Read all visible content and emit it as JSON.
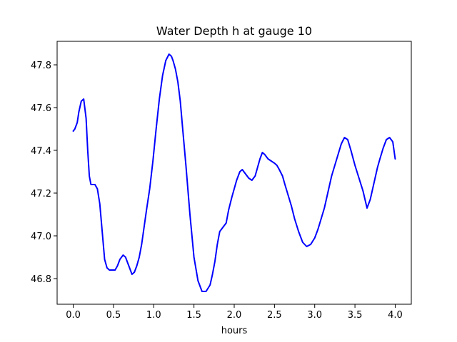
{
  "chart_data": {
    "type": "line",
    "title": "Water Depth h at gauge 10",
    "xlabel": "hours",
    "ylabel": "",
    "xlim": [
      -0.2,
      4.2
    ],
    "ylim": [
      46.68,
      47.91
    ],
    "grid": false,
    "x_ticks": [
      0.0,
      0.5,
      1.0,
      1.5,
      2.0,
      2.5,
      3.0,
      3.5,
      4.0
    ],
    "x_tick_labels": [
      "0.0",
      "0.5",
      "1.0",
      "1.5",
      "2.0",
      "2.5",
      "3.0",
      "3.5",
      "4.0"
    ],
    "y_ticks": [
      46.8,
      47.0,
      47.2,
      47.4,
      47.6,
      47.8
    ],
    "y_tick_labels": [
      "46.8",
      "47.0",
      "47.2",
      "47.4",
      "47.6",
      "47.8"
    ],
    "series": [
      {
        "color": "#0000ff",
        "x": [
          0.0,
          0.02,
          0.05,
          0.07,
          0.1,
          0.13,
          0.16,
          0.18,
          0.2,
          0.22,
          0.25,
          0.27,
          0.3,
          0.33,
          0.36,
          0.39,
          0.42,
          0.45,
          0.48,
          0.5,
          0.52,
          0.55,
          0.58,
          0.62,
          0.65,
          0.68,
          0.71,
          0.73,
          0.76,
          0.79,
          0.82,
          0.85,
          0.88,
          0.91,
          0.95,
          0.99,
          1.03,
          1.07,
          1.11,
          1.15,
          1.19,
          1.22,
          1.24,
          1.27,
          1.3,
          1.33,
          1.36,
          1.4,
          1.45,
          1.5,
          1.55,
          1.6,
          1.65,
          1.7,
          1.73,
          1.76,
          1.79,
          1.82,
          1.86,
          1.9,
          1.93,
          1.97,
          2.0,
          2.03,
          2.07,
          2.1,
          2.14,
          2.18,
          2.22,
          2.26,
          2.29,
          2.32,
          2.35,
          2.38,
          2.42,
          2.46,
          2.5,
          2.53,
          2.56,
          2.6,
          2.63,
          2.67,
          2.71,
          2.75,
          2.8,
          2.85,
          2.9,
          2.95,
          3.0,
          3.04,
          3.08,
          3.12,
          3.15,
          3.18,
          3.21,
          3.25,
          3.29,
          3.33,
          3.37,
          3.41,
          3.45,
          3.5,
          3.55,
          3.6,
          3.65,
          3.69,
          3.72,
          3.75,
          3.78,
          3.81,
          3.85,
          3.89,
          3.93,
          3.97,
          4.0
        ],
        "y": [
          47.49,
          47.5,
          47.53,
          47.58,
          47.63,
          47.64,
          47.55,
          47.4,
          47.28,
          47.24,
          47.24,
          47.24,
          47.22,
          47.15,
          47.02,
          46.89,
          46.85,
          46.84,
          46.84,
          46.84,
          46.84,
          46.86,
          46.89,
          46.91,
          46.9,
          46.87,
          46.84,
          46.82,
          46.83,
          46.86,
          46.9,
          46.96,
          47.04,
          47.12,
          47.22,
          47.35,
          47.5,
          47.64,
          47.75,
          47.82,
          47.85,
          47.84,
          47.82,
          47.78,
          47.72,
          47.63,
          47.5,
          47.33,
          47.1,
          46.9,
          46.79,
          46.74,
          46.74,
          46.77,
          46.82,
          46.88,
          46.96,
          47.02,
          47.04,
          47.06,
          47.12,
          47.18,
          47.22,
          47.26,
          47.3,
          47.31,
          47.29,
          47.27,
          47.26,
          47.28,
          47.32,
          47.36,
          47.39,
          47.38,
          47.36,
          47.35,
          47.34,
          47.33,
          47.31,
          47.28,
          47.24,
          47.19,
          47.14,
          47.08,
          47.02,
          46.97,
          46.95,
          46.96,
          46.99,
          47.03,
          47.08,
          47.13,
          47.18,
          47.23,
          47.28,
          47.33,
          47.38,
          47.43,
          47.46,
          47.45,
          47.4,
          47.33,
          47.27,
          47.21,
          47.13,
          47.17,
          47.22,
          47.27,
          47.32,
          47.36,
          47.41,
          47.45,
          47.46,
          47.44,
          47.36
        ]
      }
    ]
  }
}
